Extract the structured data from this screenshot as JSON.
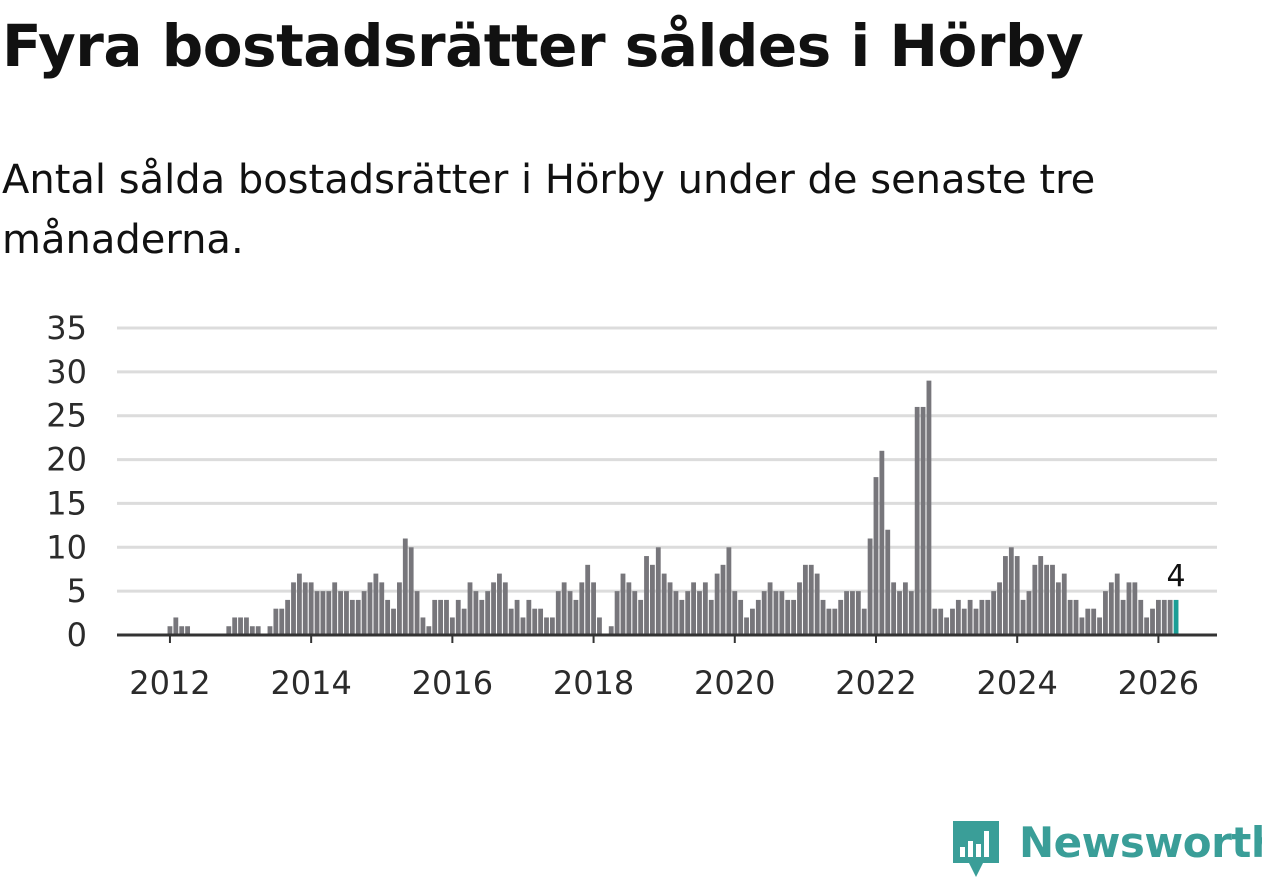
{
  "title": "Fyra bostadsrätter såldes i Hörby",
  "subtitle": "Antal sålda bostadsrätter i Hörby under de senaste tre månaderna.",
  "brand": {
    "name": "Newsworthy",
    "color": "#3a9e98"
  },
  "colors": {
    "bar": "#77767b",
    "highlight": "#1a9e96",
    "grid": "#dcdcdc",
    "axis": "#333333"
  },
  "chart_data": {
    "type": "bar",
    "title": "Fyra bostadsrätter såldes i Hörby",
    "subtitle": "Antal sålda bostadsrätter i Hörby under de senaste tre månaderna.",
    "xlabel": "",
    "ylabel": "",
    "grid": true,
    "start": "2011-01",
    "xlim": [
      2011.25,
      2026.83
    ],
    "ylim": [
      0,
      35
    ],
    "yticks": [
      0,
      5,
      10,
      15,
      20,
      25,
      30,
      35
    ],
    "xticks": [
      2012,
      2014,
      2016,
      2018,
      2020,
      2022,
      2024,
      2026
    ],
    "values": [
      0,
      0,
      0,
      0,
      0,
      0,
      0,
      0,
      0,
      0,
      0,
      0,
      1,
      2,
      1,
      1,
      0,
      0,
      0,
      0,
      0,
      0,
      1,
      2,
      2,
      2,
      1,
      1,
      0,
      1,
      3,
      3,
      4,
      6,
      7,
      6,
      6,
      5,
      5,
      5,
      6,
      5,
      5,
      4,
      4,
      5,
      6,
      7,
      6,
      4,
      3,
      6,
      11,
      10,
      5,
      2,
      1,
      4,
      4,
      4,
      2,
      4,
      3,
      6,
      5,
      4,
      5,
      6,
      7,
      6,
      3,
      4,
      2,
      4,
      3,
      3,
      2,
      2,
      5,
      6,
      5,
      4,
      6,
      8,
      6,
      2,
      0,
      1,
      5,
      7,
      6,
      5,
      4,
      9,
      8,
      10,
      7,
      6,
      5,
      4,
      5,
      6,
      5,
      6,
      4,
      7,
      8,
      10,
      5,
      4,
      2,
      3,
      4,
      5,
      6,
      5,
      5,
      4,
      4,
      6,
      8,
      8,
      7,
      4,
      3,
      3,
      4,
      5,
      5,
      5,
      3,
      11,
      18,
      21,
      12,
      6,
      5,
      6,
      5,
      26,
      26,
      29,
      3,
      3,
      2,
      3,
      4,
      3,
      4,
      3,
      4,
      4,
      5,
      6,
      9,
      10,
      9,
      4,
      5,
      8,
      9,
      8,
      8,
      6,
      7,
      4,
      4,
      2,
      3,
      3,
      2,
      5,
      6,
      7,
      4,
      6,
      6,
      4,
      2,
      3,
      4,
      4,
      4,
      4
    ],
    "highlight": {
      "index": 183,
      "period": "2026-04",
      "value": 4,
      "label": "4"
    }
  }
}
